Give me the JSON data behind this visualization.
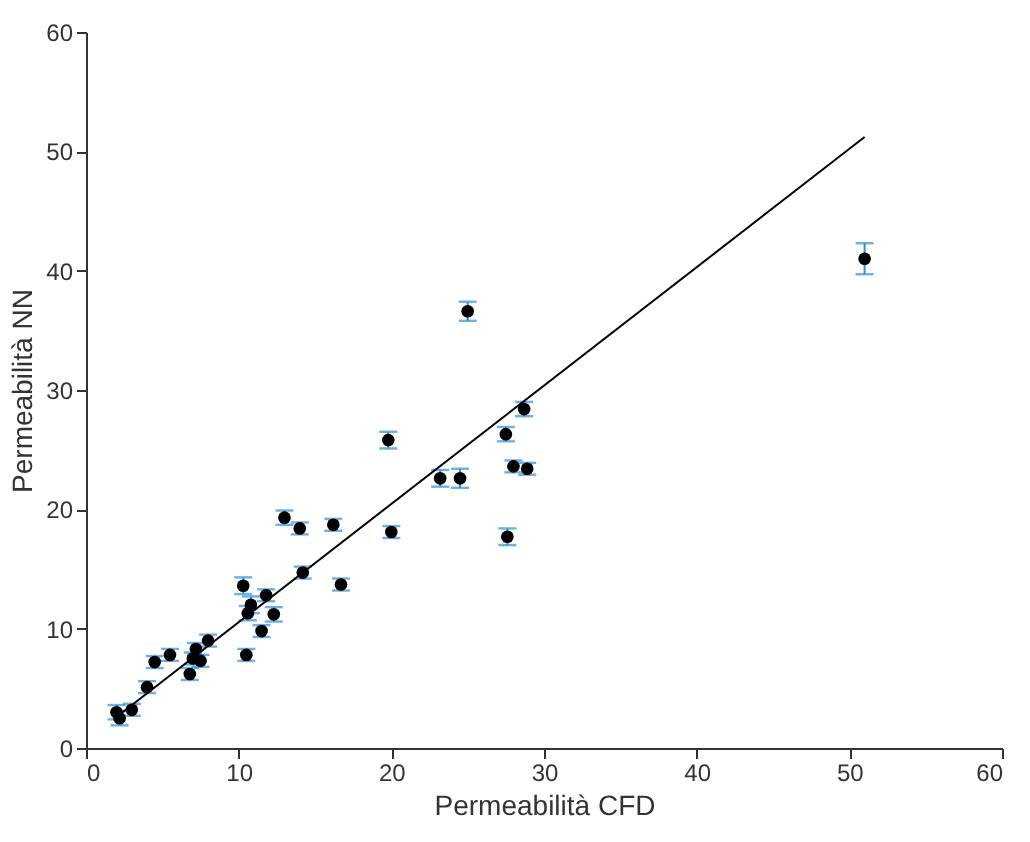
{
  "chart_data": {
    "type": "scatter",
    "xlabel": "Permeabilità CFD",
    "ylabel": "Permeabilità NN",
    "xlim": [
      0,
      60
    ],
    "ylim": [
      0,
      60
    ],
    "xticks": [
      0,
      10,
      20,
      30,
      40,
      50,
      60
    ],
    "yticks": [
      0,
      10,
      20,
      30,
      40,
      50,
      60
    ],
    "grid": false,
    "series": [
      {
        "color": "#000000",
        "marker": "circle",
        "x": [
          2,
          2.2,
          3,
          4,
          4.5,
          5.5,
          6.8,
          7,
          7.2,
          7.5,
          8,
          10.3,
          10.5,
          10.6,
          10.8,
          11.5,
          11.8,
          12.3,
          13,
          14,
          14.2,
          16.2,
          16.7,
          19.8,
          20,
          23.2,
          24.5,
          25,
          27.5,
          27.6,
          28,
          28.7,
          28.9,
          51
        ],
        "values": [
          3.0,
          2.5,
          3.2,
          5.1,
          7.2,
          7.8,
          6.2,
          7.5,
          8.3,
          7.3,
          9.0,
          13.6,
          7.8,
          11.3,
          12.0,
          9.8,
          12.8,
          11.2,
          19.3,
          18.4,
          14.7,
          18.7,
          13.7,
          25.8,
          18.1,
          22.6,
          22.6,
          36.6,
          26.3,
          17.7,
          23.6,
          28.4,
          23.4,
          41
        ],
        "errors": [
          0.6,
          0.6,
          0.5,
          0.5,
          0.5,
          0.5,
          0.5,
          0.5,
          0.5,
          0.5,
          0.5,
          0.7,
          0.5,
          0.6,
          0.7,
          0.5,
          0.5,
          0.6,
          0.6,
          0.5,
          0.5,
          0.5,
          0.5,
          0.7,
          0.5,
          0.7,
          0.8,
          0.8,
          0.6,
          0.7,
          0.5,
          0.6,
          0.5,
          1.3
        ]
      },
      {
        "type": "line",
        "color": "#000000",
        "x": [
          2,
          51
        ],
        "values": [
          2.6,
          51.2
        ]
      }
    ]
  }
}
